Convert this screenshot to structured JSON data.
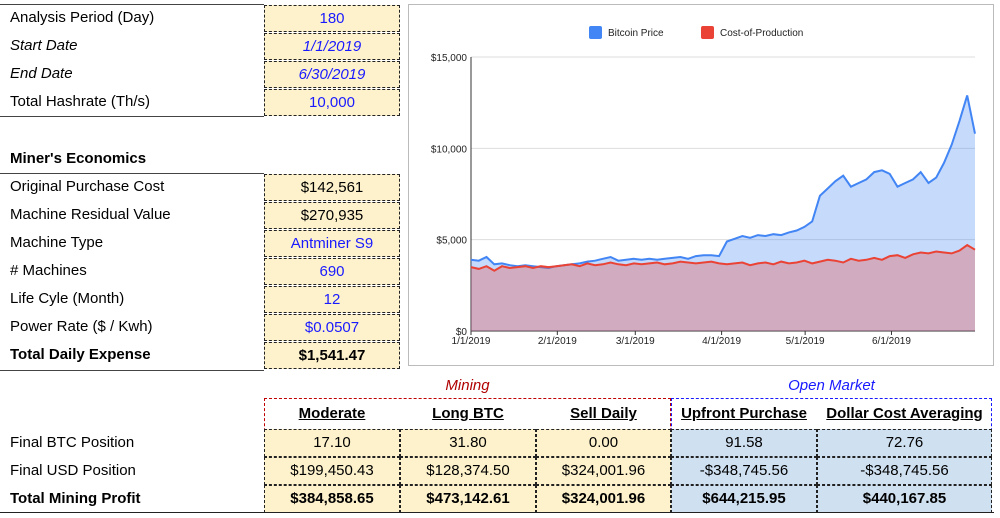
{
  "params": [
    {
      "label": "Analysis Period (Day)",
      "value": "180",
      "italic": false
    },
    {
      "label": "Start Date",
      "value": "1/1/2019",
      "italic": true
    },
    {
      "label": "End Date",
      "value": "6/30/2019",
      "italic": true
    },
    {
      "label": "Total Hashrate (Th/s)",
      "value": "10,000",
      "italic": false
    }
  ],
  "economics_title": "Miner's Economics",
  "economics": [
    {
      "label": "Original Purchase Cost",
      "value": "$142,561"
    },
    {
      "label": "Machine Residual Value",
      "value": "$270,935"
    },
    {
      "label": "Machine Type",
      "value": "Antminer S9"
    },
    {
      "label": "# Machines",
      "value": "690"
    },
    {
      "label": "Life Cyle (Month)",
      "value": "12"
    },
    {
      "label": "Power Rate ($ / Kwh)",
      "value": "$0.0507"
    },
    {
      "label": "Total Daily Expense",
      "value": "$1,541.47"
    }
  ],
  "results": {
    "group_mining": "Mining",
    "group_open_market": "Open Market",
    "columns": [
      "Moderate",
      "Long BTC",
      "Sell Daily",
      "Upfront Purchase",
      "Dollar Cost Averaging"
    ],
    "rows": [
      {
        "label": "Final BTC Position",
        "values": [
          "17.10",
          "31.80",
          "0.00",
          "91.58",
          "72.76"
        ]
      },
      {
        "label": "Final USD Position",
        "values": [
          "$199,450.43",
          "$128,374.50",
          "$324,001.96",
          "-$348,745.56",
          "-$348,745.56"
        ]
      },
      {
        "label": "Total Mining Profit",
        "values": [
          "$384,858.65",
          "$473,142.61",
          "$324,001.96",
          "$644,215.95",
          "$440,167.85"
        ]
      }
    ]
  },
  "chart_data": {
    "type": "area",
    "series": [
      {
        "name": "Bitcoin Price",
        "color": "#4285f4",
        "values": [
          3900,
          3850,
          4050,
          3650,
          3700,
          3600,
          3550,
          3600,
          3550,
          3500,
          3450,
          3550,
          3600,
          3650,
          3700,
          3800,
          3850,
          3950,
          4050,
          3850,
          3900,
          3950,
          3900,
          3950,
          3900,
          3950,
          4000,
          4050,
          3950,
          4100,
          4150,
          4150,
          4100,
          4900,
          5050,
          5200,
          5100,
          5250,
          5200,
          5300,
          5250,
          5400,
          5500,
          5700,
          6000,
          7400,
          7800,
          8200,
          8500,
          7900,
          8100,
          8300,
          8700,
          8800,
          8600,
          7900,
          8100,
          8300,
          8700,
          8100,
          8400,
          9200,
          10200,
          11500,
          12900,
          10800
        ]
      },
      {
        "name": "Cost-of-Production",
        "color": "#ea4335",
        "values": [
          3500,
          3400,
          3550,
          3300,
          3550,
          3450,
          3500,
          3550,
          3450,
          3550,
          3500,
          3550,
          3600,
          3650,
          3550,
          3700,
          3600,
          3650,
          3750,
          3650,
          3600,
          3700,
          3650,
          3700,
          3750,
          3650,
          3700,
          3800,
          3750,
          3700,
          3750,
          3800,
          3700,
          3650,
          3700,
          3750,
          3600,
          3700,
          3750,
          3650,
          3800,
          3700,
          3750,
          3850,
          3700,
          3800,
          3900,
          3850,
          3750,
          3950,
          3850,
          3900,
          4000,
          3900,
          4100,
          4150,
          4000,
          4200,
          4300,
          4250,
          4350,
          4300,
          4250,
          4400,
          4700,
          4450
        ]
      }
    ],
    "x_ticks": [
      "1/1/2019",
      "2/1/2019",
      "3/1/2019",
      "4/1/2019",
      "5/1/2019",
      "6/1/2019"
    ],
    "y_ticks": [
      "$0",
      "$5,000",
      "$10,000",
      "$15,000"
    ],
    "ylim": [
      0,
      15000
    ],
    "legend": "top"
  }
}
